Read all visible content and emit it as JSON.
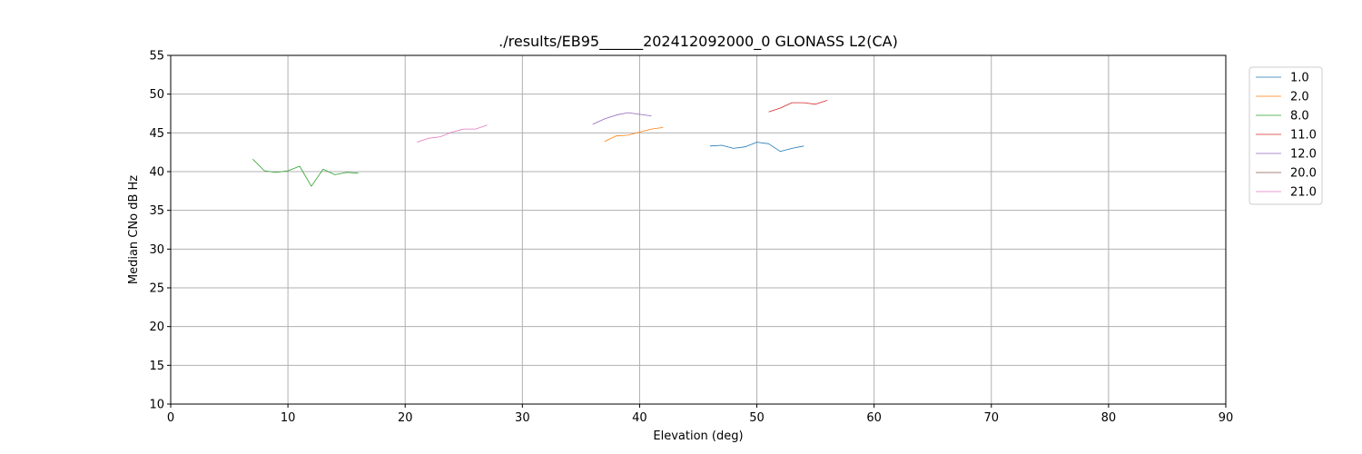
{
  "chart_data": {
    "type": "line",
    "title": "./results/EB95______202412092000_0 GLONASS L2(CA)",
    "xlabel": "Elevation (deg)",
    "ylabel": "Median CNo dB Hz",
    "xlim": [
      0,
      90
    ],
    "ylim": [
      10,
      55
    ],
    "xticks": [
      0,
      10,
      20,
      30,
      40,
      50,
      60,
      70,
      80,
      90
    ],
    "yticks": [
      10,
      15,
      20,
      25,
      30,
      35,
      40,
      45,
      50,
      55
    ],
    "grid": true,
    "legend_placement": "upper-right-outside",
    "series": [
      {
        "name": "1.0",
        "color": "#1f77b4",
        "x": [
          46,
          47,
          48,
          49,
          50,
          51,
          52,
          53,
          54
        ],
        "y": [
          43.3,
          43.4,
          43.0,
          43.2,
          43.8,
          43.6,
          42.6,
          43.0,
          43.3
        ]
      },
      {
        "name": "2.0",
        "color": "#ff7f0e",
        "x": [
          37,
          38,
          39,
          40,
          41,
          42
        ],
        "y": [
          43.9,
          44.6,
          44.7,
          45.1,
          45.5,
          45.7
        ]
      },
      {
        "name": "8.0",
        "color": "#2ca02c",
        "x": [
          7,
          8,
          9,
          10,
          11,
          12,
          13,
          14,
          15,
          16
        ],
        "y": [
          41.6,
          40.1,
          39.9,
          40.1,
          40.7,
          38.1,
          40.3,
          39.6,
          39.9,
          39.8
        ]
      },
      {
        "name": "11.0",
        "color": "#d62728",
        "x": [
          51,
          52,
          53,
          54,
          55,
          56
        ],
        "y": [
          47.7,
          48.2,
          48.9,
          48.9,
          48.7,
          49.2
        ]
      },
      {
        "name": "12.0",
        "color": "#9467bd",
        "x": [
          36,
          37,
          38,
          39,
          40,
          41
        ],
        "y": [
          46.1,
          46.8,
          47.3,
          47.6,
          47.4,
          47.2
        ]
      },
      {
        "name": "20.0",
        "color": "#8c564b",
        "x": [],
        "y": []
      },
      {
        "name": "21.0",
        "color": "#e377c2",
        "x": [
          21,
          22,
          23,
          24,
          25,
          26,
          27
        ],
        "y": [
          43.8,
          44.3,
          44.5,
          45.1,
          45.5,
          45.5,
          46.0
        ]
      }
    ]
  }
}
